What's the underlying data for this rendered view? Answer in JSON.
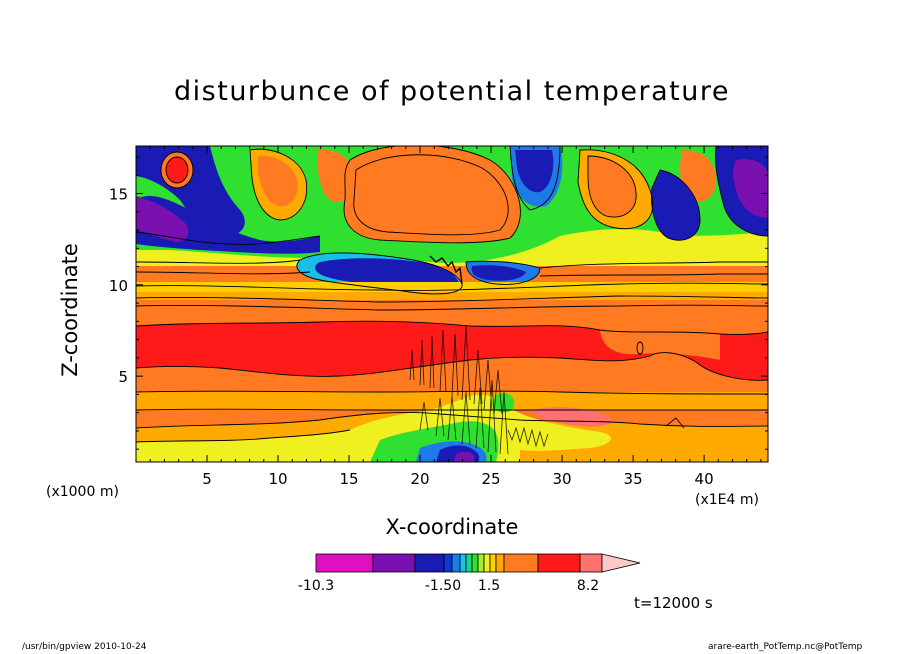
{
  "chart_data": {
    "type": "heatmap",
    "title": "disturbunce of potential temperature",
    "xlabel": "X-coordinate",
    "ylabel": "Z-coordinate",
    "x_axis_note": "(x1000 m)",
    "x_scale_note": "(x1E4 m)",
    "x_ticks": [
      5,
      10,
      15,
      20,
      25,
      30,
      35,
      40
    ],
    "y_ticks": [
      5,
      10,
      15
    ],
    "xlim": [
      0,
      44.5
    ],
    "ylim": [
      0.3,
      17.6
    ],
    "colorbar": {
      "colors": [
        "#e010c0",
        "#7a10b0",
        "#1a1ab4",
        "#0a3ad0",
        "#1e7ae6",
        "#18c0e6",
        "#18d888",
        "#30e030",
        "#a0f030",
        "#f0f020",
        "#ffd000",
        "#ffaa00",
        "#ff7a20",
        "#ff1a1a",
        "#ff7070",
        "#ffc8c8"
      ],
      "tick_labels": [
        "-10.3",
        "-1.50",
        "1.5",
        "8.2"
      ]
    },
    "time_label": "t=12000 s"
  },
  "footer": {
    "left": "/usr/bin/gpview   2010-10-24",
    "right": "arare-earth_PotTemp.nc@PotTemp"
  }
}
